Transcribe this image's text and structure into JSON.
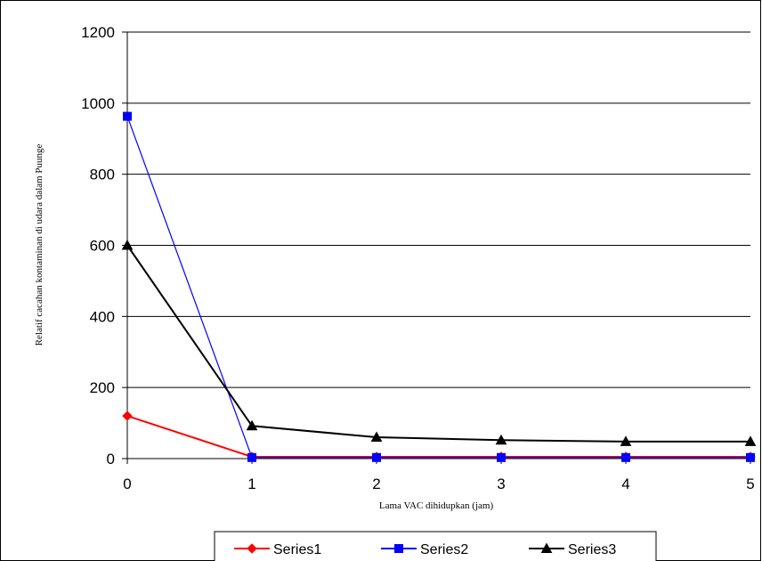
{
  "chart_data": {
    "type": "line",
    "xlabel": "Lama VAC dihidupkan (jam)",
    "ylabel": "Relatif cacahan kontaminan di udara dalam Puunge",
    "ylim": [
      0,
      1200
    ],
    "yticks": [
      0,
      200,
      400,
      600,
      800,
      1000,
      1200
    ],
    "x": [
      0,
      1,
      2,
      3,
      4,
      5
    ],
    "grid": "horizontal",
    "legend_position": "bottom",
    "series": [
      {
        "name": "Series1",
        "color": "#ff0000",
        "marker": "diamond",
        "values": [
          120,
          5,
          5,
          5,
          5,
          5
        ]
      },
      {
        "name": "Series2",
        "color": "#0000ff",
        "marker": "square",
        "values": [
          963,
          3,
          3,
          3,
          3,
          3
        ]
      },
      {
        "name": "Series3",
        "color": "#000000",
        "marker": "triangle",
        "values": [
          600,
          92,
          60,
          52,
          48,
          48
        ]
      }
    ]
  }
}
